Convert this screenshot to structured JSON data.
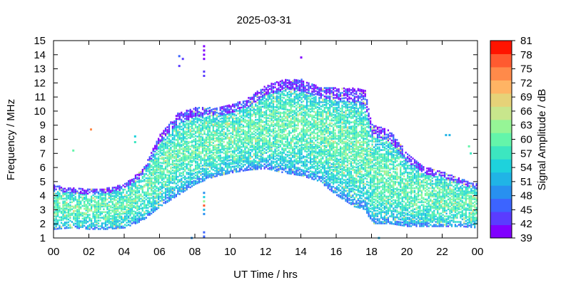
{
  "chart_data": {
    "type": "heatmap",
    "title": "2025-03-31",
    "xlabel": "UT Time / hrs",
    "ylabel": "Frequency / MHz",
    "colorbar_label": "Signal Amplitude / dB",
    "xlim": [
      0,
      24
    ],
    "ylim": [
      1,
      15
    ],
    "x_tick_labels": [
      "00",
      "02",
      "04",
      "06",
      "08",
      "10",
      "12",
      "14",
      "16",
      "18",
      "20",
      "22",
      "00"
    ],
    "y_tick_labels": [
      "1",
      "2",
      "3",
      "4",
      "5",
      "6",
      "7",
      "8",
      "9",
      "10",
      "11",
      "12",
      "13",
      "14",
      "15"
    ],
    "colorbar_ticks": [
      "39",
      "42",
      "45",
      "48",
      "51",
      "54",
      "57",
      "60",
      "63",
      "66",
      "69",
      "72",
      "75",
      "78",
      "81"
    ],
    "colorbar_colors": [
      "#8000ff",
      "#5a3cff",
      "#3c64ff",
      "#2890f0",
      "#20b4e6",
      "#1ed2dc",
      "#3ce6c0",
      "#64f5aa",
      "#96f596",
      "#c8e68c",
      "#e6d278",
      "#ffb464",
      "#ff8a4a",
      "#ff5a30",
      "#ff1400"
    ],
    "grid": false,
    "coverage_profile": {
      "hours": [
        0,
        1,
        2,
        3,
        4,
        5,
        6,
        7,
        8,
        9,
        10,
        11,
        12,
        13,
        14,
        15,
        16,
        17,
        17.6,
        18,
        19,
        20,
        21,
        22,
        23,
        23.9
      ],
      "fmin": [
        1.6,
        1.7,
        1.6,
        1.6,
        1.7,
        2.2,
        3.2,
        4.0,
        4.8,
        5.3,
        5.6,
        5.8,
        5.9,
        5.6,
        5.4,
        5.0,
        4.0,
        3.2,
        3.0,
        2.0,
        2.0,
        1.8,
        1.8,
        1.8,
        1.8,
        1.7
      ],
      "fmax": [
        4.7,
        4.5,
        4.4,
        4.5,
        4.8,
        5.8,
        8.3,
        9.8,
        10.2,
        10.2,
        10.4,
        10.9,
        11.8,
        12.2,
        12.2,
        11.7,
        11.6,
        11.6,
        11.4,
        9.0,
        8.6,
        7.0,
        6.0,
        5.7,
        5.2,
        4.8
      ]
    },
    "amplitude_profile": {
      "low_edge_db": 50,
      "core_db": 58,
      "peak_db": 64
    },
    "outliers": [
      {
        "hour": 2.1,
        "freq": 8.7,
        "db": 75
      },
      {
        "hour": 7.1,
        "freq": 13.9,
        "db": 45
      },
      {
        "hour": 7.1,
        "freq": 13.2,
        "db": 42
      },
      {
        "hour": 7.3,
        "freq": 13.7,
        "db": 42
      },
      {
        "hour": 8.5,
        "freq": 14.6,
        "db": 39
      },
      {
        "hour": 8.5,
        "freq": 14.3,
        "db": 39
      },
      {
        "hour": 8.5,
        "freq": 14.0,
        "db": 40
      },
      {
        "hour": 8.5,
        "freq": 13.7,
        "db": 41
      },
      {
        "hour": 8.5,
        "freq": 12.8,
        "db": 42
      },
      {
        "hour": 8.5,
        "freq": 12.5,
        "db": 43
      },
      {
        "hour": 8.5,
        "freq": 4.2,
        "db": 50
      },
      {
        "hour": 8.5,
        "freq": 3.9,
        "db": 54
      },
      {
        "hour": 8.5,
        "freq": 3.6,
        "db": 63
      },
      {
        "hour": 8.5,
        "freq": 3.3,
        "db": 78
      },
      {
        "hour": 8.5,
        "freq": 3.0,
        "db": 51
      },
      {
        "hour": 8.5,
        "freq": 2.7,
        "db": 50
      },
      {
        "hour": 8.5,
        "freq": 1.4,
        "db": 45
      },
      {
        "hour": 8.5,
        "freq": 1.1,
        "db": 45
      },
      {
        "hour": 14.0,
        "freq": 13.8,
        "db": 39
      },
      {
        "hour": 1.1,
        "freq": 7.2,
        "db": 60
      },
      {
        "hour": 4.6,
        "freq": 8.2,
        "db": 54
      },
      {
        "hour": 4.6,
        "freq": 7.8,
        "db": 58
      },
      {
        "hour": 22.2,
        "freq": 8.3,
        "db": 51
      },
      {
        "hour": 22.4,
        "freq": 8.3,
        "db": 51
      },
      {
        "hour": 23.5,
        "freq": 7.5,
        "db": 60
      },
      {
        "hour": 23.6,
        "freq": 7.0,
        "db": 57
      },
      {
        "hour": 7.8,
        "freq": 1.0,
        "db": 48
      },
      {
        "hour": 18.4,
        "freq": 1.0,
        "db": 51
      }
    ]
  }
}
